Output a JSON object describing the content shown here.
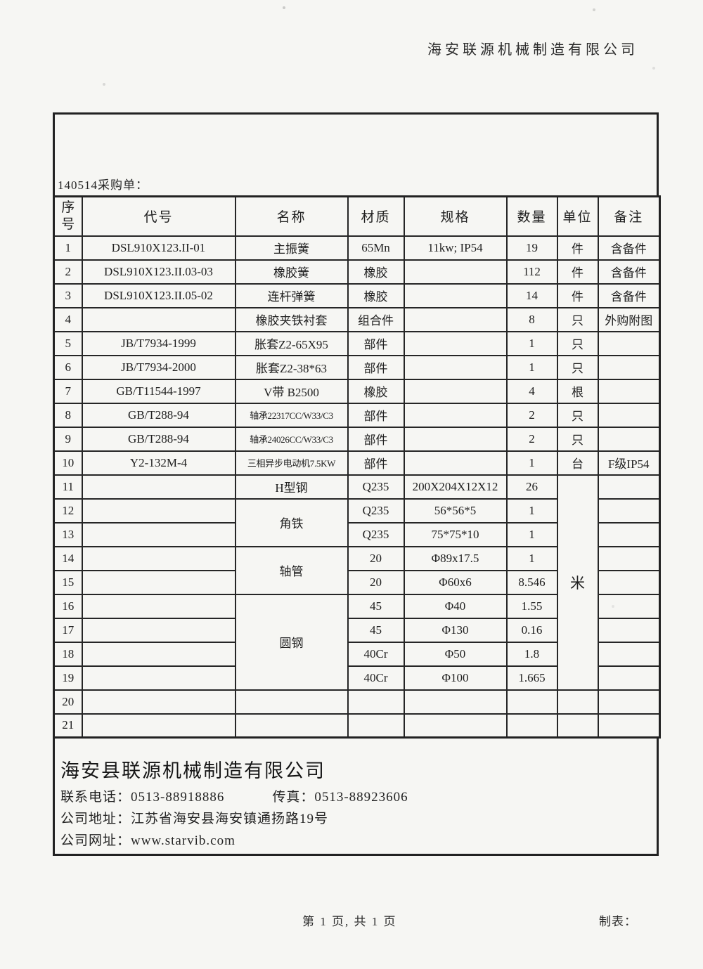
{
  "letterhead": {
    "company": "海安联源机械制造有限公司"
  },
  "sheet": {
    "order_title": "140514采购单：",
    "table": {
      "headers": {
        "no": "序\n号",
        "code": "代号",
        "name": "名称",
        "material": "材质",
        "spec": "规格",
        "qty": "数量",
        "unit": "单位",
        "remark": "备注"
      },
      "rows": [
        {
          "no": "1",
          "code": "DSL910X123.II-01",
          "name": "主振簧",
          "material": "65Mn",
          "spec": "11kw; IP54",
          "qty": "19",
          "unit": "件",
          "remark": "含备件"
        },
        {
          "no": "2",
          "code": "DSL910X123.II.03-03",
          "name": "橡胶簧",
          "material": "橡胶",
          "spec": "",
          "qty": "112",
          "unit": "件",
          "remark": "含备件"
        },
        {
          "no": "3",
          "code": "DSL910X123.II.05-02",
          "name": "连杆弹簧",
          "material": "橡胶",
          "spec": "",
          "qty": "14",
          "unit": "件",
          "remark": "含备件"
        },
        {
          "no": "4",
          "code": "",
          "name": "橡胶夹铁衬套",
          "material": "组合件",
          "spec": "",
          "qty": "8",
          "unit": "只",
          "remark": "外购附图"
        },
        {
          "no": "5",
          "code": "JB/T7934-1999",
          "name": "胀套Z2-65X95",
          "material": "部件",
          "spec": "",
          "qty": "1",
          "unit": "只",
          "remark": ""
        },
        {
          "no": "6",
          "code": "JB/T7934-2000",
          "name": "胀套Z2-38*63",
          "material": "部件",
          "spec": "",
          "qty": "1",
          "unit": "只",
          "remark": ""
        },
        {
          "no": "7",
          "code": "GB/T11544-1997",
          "name": "V带 B2500",
          "material": "橡胶",
          "spec": "",
          "qty": "4",
          "unit": "根",
          "remark": ""
        },
        {
          "no": "8",
          "code": "GB/T288-94",
          "name": "轴承22317CC/W33/C3",
          "material": "部件",
          "spec": "",
          "qty": "2",
          "unit": "只",
          "remark": ""
        },
        {
          "no": "9",
          "code": "GB/T288-94",
          "name": "轴承24026CC/W33/C3",
          "material": "部件",
          "spec": "",
          "qty": "2",
          "unit": "只",
          "remark": ""
        },
        {
          "no": "10",
          "code": "Y2-132M-4",
          "name": "三相异步电动机7.5KW",
          "material": "部件",
          "spec": "",
          "qty": "1",
          "unit": "台",
          "remark": "F级IP54"
        },
        {
          "no": "11",
          "code": "",
          "name": "H型钢",
          "material": "Q235",
          "spec": "200X204X12X12",
          "qty": "26",
          "unit": "米",
          "remark": ""
        },
        {
          "no": "12",
          "code": "",
          "name": "角铁",
          "material": "Q235",
          "spec": "56*56*5",
          "qty": "1",
          "remark": ""
        },
        {
          "no": "13",
          "code": "",
          "material": "Q235",
          "spec": "75*75*10",
          "qty": "1",
          "remark": ""
        },
        {
          "no": "14",
          "code": "",
          "name": "轴管",
          "material": "20",
          "spec": "Φ89x17.5",
          "qty": "1",
          "remark": ""
        },
        {
          "no": "15",
          "code": "",
          "material": "20",
          "spec": "Φ60x6",
          "qty": "8.546",
          "remark": ""
        },
        {
          "no": "16",
          "code": "",
          "name": "圆钢",
          "material": "45",
          "spec": "Φ40",
          "qty": "1.55",
          "remark": ""
        },
        {
          "no": "17",
          "code": "",
          "material": "45",
          "spec": "Φ130",
          "qty": "0.16",
          "remark": ""
        },
        {
          "no": "18",
          "code": "",
          "material": "40Cr",
          "spec": "Φ50",
          "qty": "1.8",
          "remark": ""
        },
        {
          "no": "19",
          "code": "",
          "material": "40Cr",
          "spec": "Φ100",
          "qty": "1.665",
          "remark": ""
        },
        {
          "no": "20",
          "code": "",
          "name": "",
          "material": "",
          "spec": "",
          "qty": "",
          "unit": "",
          "remark": ""
        },
        {
          "no": "21",
          "code": "",
          "name": "",
          "material": "",
          "spec": "",
          "qty": "",
          "unit": "",
          "remark": ""
        }
      ]
    },
    "company_info": {
      "name": "海安县联源机械制造有限公司",
      "phone_label": "联系电话：",
      "phone": "0513-88918886",
      "fax_label": "传真：",
      "fax": "0513-88923606",
      "address_label": "公司地址：",
      "address": "江苏省海安县海安镇通扬路19号",
      "website_label": "公司网址：",
      "website": "www.starvib.com"
    }
  },
  "footer": {
    "page_info": "第 1 页, 共 1 页",
    "tabulator_label": "制表："
  }
}
